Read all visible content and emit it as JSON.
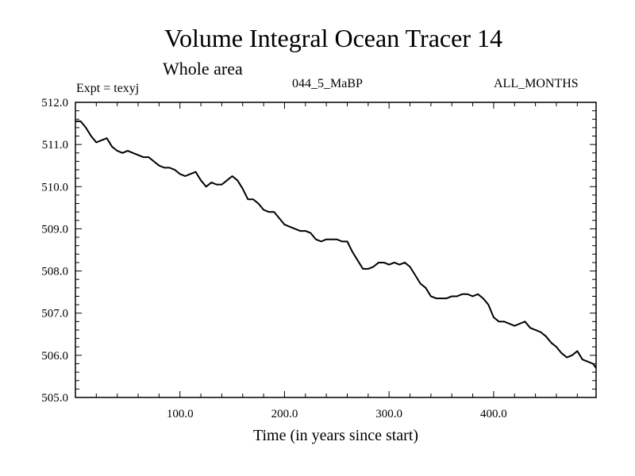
{
  "header": {
    "title": "Volume Integral Ocean Tracer 14",
    "subtitle": "Whole area",
    "expt": "Expt = texyj",
    "run": "044_5_MaBP",
    "months": "ALL_MONTHS"
  },
  "chart_data": {
    "type": "line",
    "title": "Volume Integral Ocean Tracer 14",
    "xlabel": "Time (in years since start)",
    "ylabel": "",
    "xlim": [
      0,
      498
    ],
    "ylim": [
      505.0,
      512.0
    ],
    "xticks": [
      100,
      200,
      300,
      400
    ],
    "xtick_labels": [
      "100.0",
      "200.0",
      "300.0",
      "400.0"
    ],
    "yticks": [
      505,
      506,
      507,
      508,
      509,
      510,
      511,
      512
    ],
    "ytick_labels": [
      "505.0",
      "506.0",
      "507.0",
      "508.0",
      "509.0",
      "510.0",
      "511.0",
      "512.0"
    ],
    "grid": false,
    "series": [
      {
        "color": "#000000",
        "x": [
          0,
          5,
          10,
          15,
          20,
          25,
          30,
          35,
          40,
          45,
          50,
          55,
          60,
          65,
          70,
          75,
          80,
          85,
          90,
          95,
          100,
          105,
          110,
          115,
          120,
          125,
          130,
          135,
          140,
          145,
          150,
          155,
          160,
          165,
          170,
          175,
          180,
          185,
          190,
          195,
          200,
          205,
          210,
          215,
          220,
          225,
          230,
          235,
          240,
          245,
          250,
          255,
          260,
          265,
          270,
          275,
          280,
          285,
          290,
          295,
          300,
          305,
          310,
          315,
          320,
          325,
          330,
          335,
          340,
          345,
          350,
          355,
          360,
          365,
          370,
          375,
          380,
          385,
          390,
          395,
          400,
          405,
          410,
          415,
          420,
          425,
          430,
          435,
          440,
          445,
          450,
          455,
          460,
          465,
          470,
          475,
          480,
          485,
          490,
          495,
          498
        ],
        "y": [
          511.55,
          511.55,
          511.4,
          511.2,
          511.05,
          511.1,
          511.15,
          510.95,
          510.85,
          510.8,
          510.85,
          510.8,
          510.75,
          510.7,
          510.7,
          510.6,
          510.5,
          510.45,
          510.45,
          510.4,
          510.3,
          510.25,
          510.3,
          510.35,
          510.15,
          510.0,
          510.1,
          510.05,
          510.05,
          510.15,
          510.25,
          510.15,
          509.95,
          509.7,
          509.7,
          509.6,
          509.45,
          509.4,
          509.4,
          509.25,
          509.1,
          509.05,
          509.0,
          508.95,
          508.95,
          508.9,
          508.75,
          508.7,
          508.75,
          508.75,
          508.75,
          508.7,
          508.7,
          508.45,
          508.25,
          508.05,
          508.05,
          508.1,
          508.2,
          508.2,
          508.15,
          508.2,
          508.15,
          508.2,
          508.1,
          507.9,
          507.7,
          507.6,
          507.4,
          507.35,
          507.35,
          507.35,
          507.4,
          507.4,
          507.45,
          507.45,
          507.4,
          507.45,
          507.35,
          507.2,
          506.9,
          506.8,
          506.8,
          506.75,
          506.7,
          506.75,
          506.8,
          506.65,
          506.6,
          506.55,
          506.45,
          506.3,
          506.2,
          506.05,
          505.95,
          506.0,
          506.1,
          505.9,
          505.85,
          505.8,
          505.7
        ]
      }
    ]
  }
}
